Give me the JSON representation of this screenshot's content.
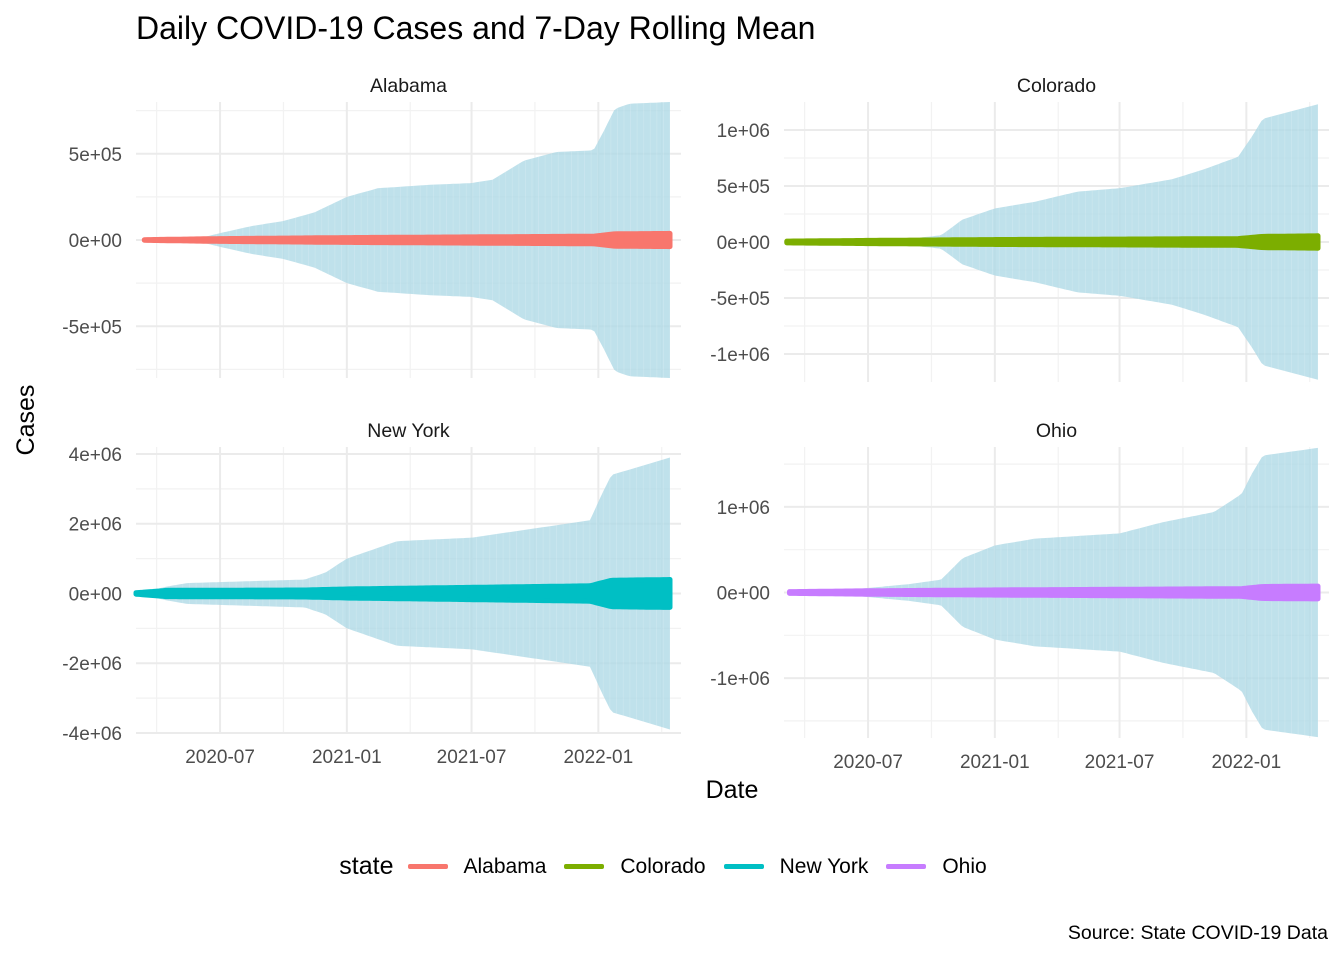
{
  "title": "Daily COVID-19 Cases and 7-Day Rolling Mean",
  "caption": "Source: State COVID-19 Data",
  "chart_data": {
    "type": "area",
    "xlabel": "Date",
    "ylabel": "Cases",
    "x_range": [
      "2020-03-01",
      "2022-05-01"
    ],
    "x_ticks": [
      "2020-07",
      "2021-01",
      "2021-07",
      "2022-01"
    ],
    "band_color": "#add8e6",
    "legend": {
      "title": "state",
      "position": "bottom",
      "entries": [
        {
          "name": "Alabama",
          "color": "#F8766D"
        },
        {
          "name": "Colorado",
          "color": "#7CAE00"
        },
        {
          "name": "New York",
          "color": "#00BFC4"
        },
        {
          "name": "Ohio",
          "color": "#C77CFF"
        }
      ]
    },
    "panels": [
      {
        "name": "Alabama",
        "color": "#F8766D",
        "ylim": [
          -800000,
          800000
        ],
        "y_ticks": [
          {
            "value": 500000,
            "label": "5e+05"
          },
          {
            "value": 0,
            "label": "0e+00"
          },
          {
            "value": -500000,
            "label": "-5e+05"
          }
        ],
        "band_upper": [
          [
            "2020-03-13",
            0
          ],
          [
            "2020-06-01",
            10000
          ],
          [
            "2020-07-01",
            40000
          ],
          [
            "2020-08-15",
            80000
          ],
          [
            "2020-10-01",
            110000
          ],
          [
            "2020-11-15",
            160000
          ],
          [
            "2021-01-01",
            250000
          ],
          [
            "2021-02-15",
            300000
          ],
          [
            "2021-05-01",
            320000
          ],
          [
            "2021-07-01",
            330000
          ],
          [
            "2021-08-01",
            350000
          ],
          [
            "2021-09-15",
            460000
          ],
          [
            "2021-11-01",
            510000
          ],
          [
            "2021-12-25",
            520000
          ],
          [
            "2022-01-10",
            640000
          ],
          [
            "2022-01-25",
            760000
          ],
          [
            "2022-02-15",
            790000
          ],
          [
            "2022-04-15",
            800000
          ]
        ],
        "line_half_width": [
          [
            "2020-03-13",
            2000
          ],
          [
            "2020-07-01",
            8000
          ],
          [
            "2021-01-01",
            14000
          ],
          [
            "2021-12-25",
            22000
          ],
          [
            "2022-01-25",
            36000
          ],
          [
            "2022-04-15",
            38000
          ]
        ]
      },
      {
        "name": "Colorado",
        "color": "#7CAE00",
        "ylim": [
          -1250000,
          1250000
        ],
        "y_ticks": [
          {
            "value": 1000000,
            "label": "1e+06"
          },
          {
            "value": 500000,
            "label": "5e+05"
          },
          {
            "value": 0,
            "label": "0e+00"
          },
          {
            "value": -500000,
            "label": "-5e+05"
          },
          {
            "value": -1000000,
            "label": "-1e+06"
          }
        ],
        "band_upper": [
          [
            "2020-03-05",
            0
          ],
          [
            "2020-06-01",
            15000
          ],
          [
            "2020-09-01",
            30000
          ],
          [
            "2020-10-15",
            60000
          ],
          [
            "2020-11-15",
            200000
          ],
          [
            "2021-01-01",
            300000
          ],
          [
            "2021-03-01",
            360000
          ],
          [
            "2021-05-01",
            450000
          ],
          [
            "2021-07-01",
            480000
          ],
          [
            "2021-09-15",
            560000
          ],
          [
            "2021-11-01",
            650000
          ],
          [
            "2021-12-20",
            760000
          ],
          [
            "2022-01-10",
            950000
          ],
          [
            "2022-01-25",
            1100000
          ],
          [
            "2022-04-15",
            1230000
          ]
        ],
        "line_half_width": [
          [
            "2020-03-05",
            8000
          ],
          [
            "2020-07-01",
            14000
          ],
          [
            "2021-01-01",
            22000
          ],
          [
            "2021-12-20",
            30000
          ],
          [
            "2022-01-25",
            50000
          ],
          [
            "2022-04-15",
            55000
          ]
        ]
      },
      {
        "name": "New York",
        "color": "#00BFC4",
        "ylim": [
          -4000000,
          4200000
        ],
        "y_ticks": [
          {
            "value": 4000000,
            "label": "4e+06"
          },
          {
            "value": 2000000,
            "label": "2e+06"
          },
          {
            "value": 0,
            "label": "0e+00"
          },
          {
            "value": -2000000,
            "label": "-2e+06"
          },
          {
            "value": -4000000,
            "label": "-4e+06"
          }
        ],
        "band_upper": [
          [
            "2020-03-01",
            0
          ],
          [
            "2020-04-15",
            200000
          ],
          [
            "2020-05-15",
            300000
          ],
          [
            "2020-11-01",
            400000
          ],
          [
            "2020-12-01",
            600000
          ],
          [
            "2021-01-01",
            1000000
          ],
          [
            "2021-03-15",
            1500000
          ],
          [
            "2021-07-01",
            1600000
          ],
          [
            "2021-12-20",
            2100000
          ],
          [
            "2022-01-05",
            2800000
          ],
          [
            "2022-01-20",
            3400000
          ],
          [
            "2022-02-15",
            3550000
          ],
          [
            "2022-04-15",
            3900000
          ]
        ],
        "line_half_width": [
          [
            "2020-03-01",
            20000
          ],
          [
            "2020-04-15",
            90000
          ],
          [
            "2020-11-01",
            100000
          ],
          [
            "2021-01-01",
            130000
          ],
          [
            "2021-12-20",
            220000
          ],
          [
            "2022-01-20",
            380000
          ],
          [
            "2022-04-15",
            400000
          ]
        ]
      },
      {
        "name": "Ohio",
        "color": "#C77CFF",
        "ylim": [
          -1700000,
          1700000
        ],
        "y_ticks": [
          {
            "value": 1000000,
            "label": "1e+06"
          },
          {
            "value": 0,
            "label": "0e+00"
          },
          {
            "value": -1000000,
            "label": "-1e+06"
          }
        ],
        "band_upper": [
          [
            "2020-03-09",
            0
          ],
          [
            "2020-06-01",
            30000
          ],
          [
            "2020-09-01",
            100000
          ],
          [
            "2020-10-15",
            150000
          ],
          [
            "2020-11-15",
            400000
          ],
          [
            "2021-01-01",
            550000
          ],
          [
            "2021-03-01",
            630000
          ],
          [
            "2021-07-01",
            690000
          ],
          [
            "2021-09-01",
            820000
          ],
          [
            "2021-11-15",
            940000
          ],
          [
            "2021-12-25",
            1150000
          ],
          [
            "2022-01-10",
            1400000
          ],
          [
            "2022-01-25",
            1600000
          ],
          [
            "2022-04-15",
            1690000
          ]
        ],
        "line_half_width": [
          [
            "2020-03-09",
            10000
          ],
          [
            "2020-07-01",
            20000
          ],
          [
            "2021-01-01",
            30000
          ],
          [
            "2021-12-25",
            45000
          ],
          [
            "2022-01-25",
            70000
          ],
          [
            "2022-04-15",
            75000
          ]
        ]
      }
    ]
  }
}
